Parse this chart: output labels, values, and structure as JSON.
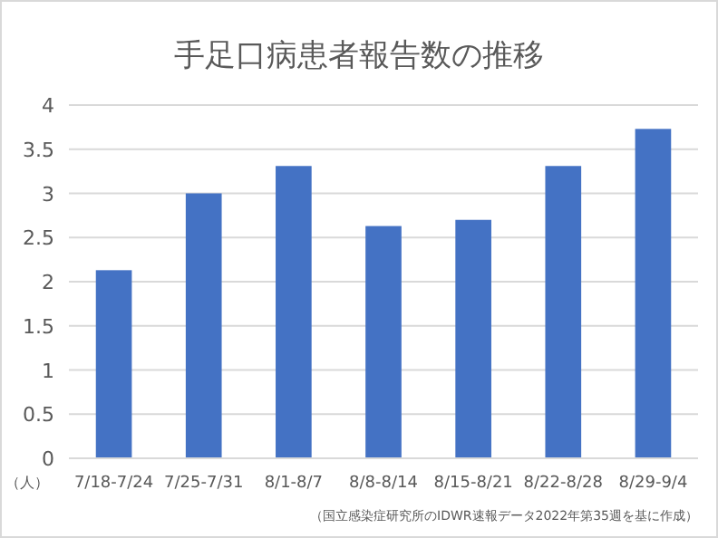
{
  "chart_data": {
    "type": "bar",
    "title": "手足口病患者報告数の推移",
    "ylabel": "（人）",
    "categories": [
      "7/18-7/24",
      "7/25-7/31",
      "8/1-8/7",
      "8/8-8/14",
      "8/15-8/21",
      "8/22-8/28",
      "8/29-9/4"
    ],
    "values": [
      2.13,
      3.0,
      3.31,
      2.63,
      2.7,
      3.31,
      3.73
    ],
    "color": "#4472c4",
    "ylim": [
      0,
      4
    ],
    "yticks": [
      0,
      0.5,
      1,
      1.5,
      2,
      2.5,
      3,
      3.5,
      4
    ],
    "grid": "y",
    "annotations": [
      "（国立感染症研究所のIDWR速報データ2022年第35週を基に作成）"
    ]
  }
}
